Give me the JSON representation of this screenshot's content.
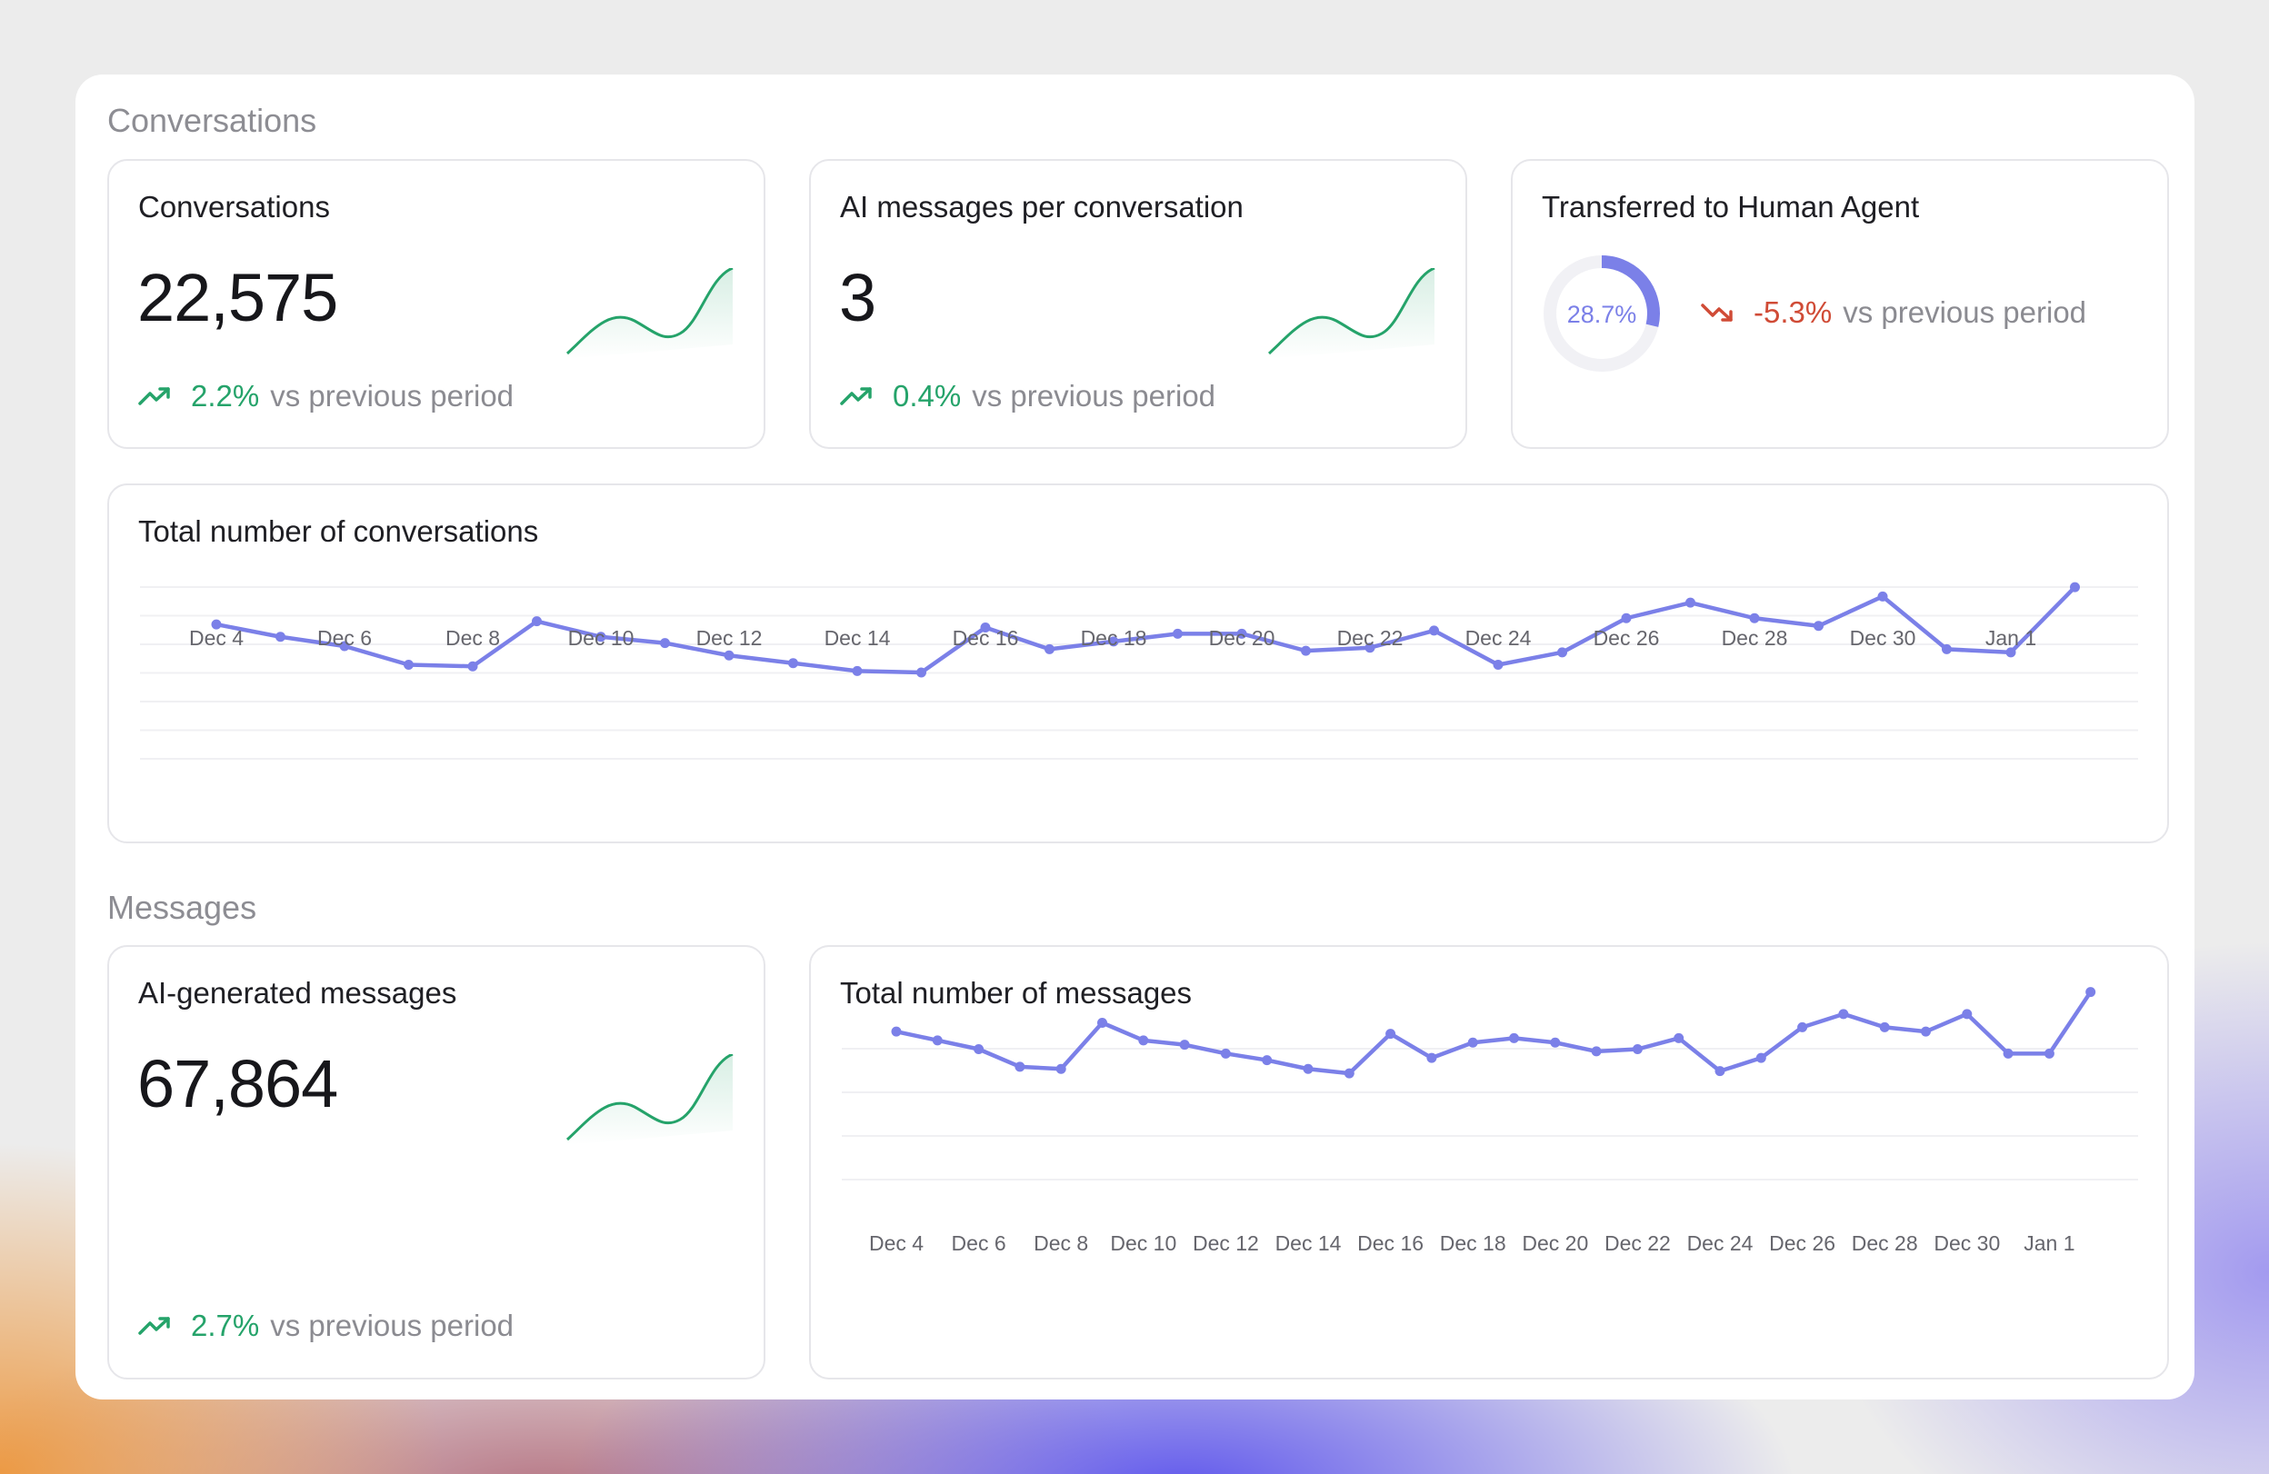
{
  "sections": {
    "conversations_title": "Conversations",
    "messages_title": "Messages"
  },
  "cards": {
    "conversations": {
      "title": "Conversations",
      "value": "22,575",
      "change": "2.2%",
      "change_suffix": "vs previous period"
    },
    "ai_per_conversation": {
      "title": "AI messages per conversation",
      "value": "3",
      "change": "0.4%",
      "change_suffix": "vs previous period"
    },
    "transferred": {
      "title": "Transferred to Human Agent",
      "donut_value": "28.7%",
      "donut_fraction": 0.287,
      "change": "-5.3%",
      "change_suffix": "vs previous period"
    },
    "ai_generated": {
      "title": "AI-generated messages",
      "value": "67,864",
      "change": "2.7%",
      "change_suffix": "vs previous period"
    }
  },
  "icons": {
    "trend_up": "trend-up-icon",
    "trend_down": "trend-down-icon"
  },
  "colors": {
    "accent": "#7b80e8",
    "positive": "#25a36a",
    "negative": "#d04b36",
    "muted": "#8d8d93"
  },
  "chart_data": [
    {
      "type": "line",
      "title": "Total number of conversations",
      "x": [
        "Dec 4",
        "Dec 5",
        "Dec 6",
        "Dec 7",
        "Dec 8",
        "Dec 9",
        "Dec 10",
        "Dec 11",
        "Dec 12",
        "Dec 13",
        "Dec 14",
        "Dec 15",
        "Dec 16",
        "Dec 17",
        "Dec 18",
        "Dec 19",
        "Dec 20",
        "Dec 21",
        "Dec 22",
        "Dec 23",
        "Dec 24",
        "Dec 25",
        "Dec 26",
        "Dec 27",
        "Dec 28",
        "Dec 29",
        "Dec 30",
        "Dec 31",
        "Jan 1",
        "Jan 2"
      ],
      "tick_labels": [
        "Dec 4",
        "Dec 6",
        "Dec 8",
        "Dec 10",
        "Dec 12",
        "Dec 14",
        "Dec 16",
        "Dec 18",
        "Dec 20",
        "Dec 22",
        "Dec 24",
        "Dec 26",
        "Dec 28",
        "Dec 30",
        "Jan 1"
      ],
      "series": [
        {
          "values": [
            43,
            39,
            36,
            30,
            29.5,
            44,
            39,
            37,
            33,
            30.5,
            28,
            27.5,
            42,
            35,
            37.5,
            40,
            40,
            34.5,
            35.5,
            41,
            30,
            34,
            45,
            50,
            45,
            42.5,
            52,
            35,
            34,
            55
          ]
        }
      ],
      "ylim": [
        0,
        60
      ],
      "grid": true,
      "legend": "none"
    },
    {
      "type": "line",
      "title": "Total number of messages",
      "x": [
        "Dec 4",
        "Dec 5",
        "Dec 6",
        "Dec 7",
        "Dec 8",
        "Dec 9",
        "Dec 10",
        "Dec 11",
        "Dec 12",
        "Dec 13",
        "Dec 14",
        "Dec 15",
        "Dec 16",
        "Dec 17",
        "Dec 18",
        "Dec 19",
        "Dec 20",
        "Dec 21",
        "Dec 22",
        "Dec 23",
        "Dec 24",
        "Dec 25",
        "Dec 26",
        "Dec 27",
        "Dec 28",
        "Dec 29",
        "Dec 30",
        "Dec 31",
        "Jan 1",
        "Jan 2"
      ],
      "tick_labels": [
        "Dec 4",
        "Dec 6",
        "Dec 8",
        "Dec 10",
        "Dec 12",
        "Dec 14",
        "Dec 16",
        "Dec 18",
        "Dec 20",
        "Dec 22",
        "Dec 24",
        "Dec 26",
        "Dec 28",
        "Dec 30",
        "Jan 1"
      ],
      "series": [
        {
          "values": [
            49,
            47,
            45,
            41,
            40.5,
            51,
            47,
            46,
            44,
            42.5,
            40.5,
            39.5,
            48.5,
            43,
            46.5,
            47.5,
            46.5,
            44.5,
            45,
            47.5,
            40,
            43,
            50,
            53,
            50,
            49,
            53,
            44,
            44,
            58
          ]
        }
      ],
      "ylim": [
        0,
        60
      ],
      "grid": true,
      "legend": "none"
    }
  ]
}
